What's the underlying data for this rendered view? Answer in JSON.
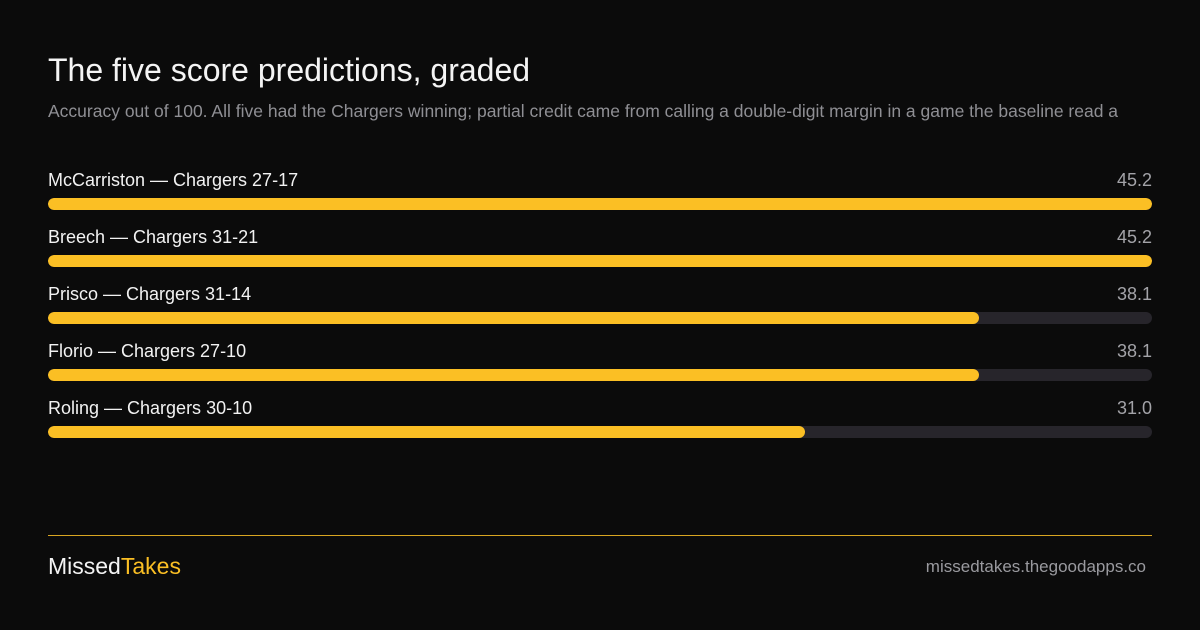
{
  "chart_data": {
    "type": "bar",
    "orientation": "horizontal",
    "title": "The five score predictions, graded",
    "subtitle": "Accuracy out of 100. All five had the Chargers winning; partial credit came from calling a double-digit margin in a game the baseline read a",
    "categories": [
      "McCarriston — Chargers 27-17",
      "Breech — Chargers 31-21",
      "Prisco — Chargers 31-14",
      "Florio — Chargers 27-10",
      "Roling — Chargers 30-10"
    ],
    "values": [
      45.2,
      45.2,
      38.1,
      38.1,
      31.0
    ],
    "value_labels": [
      "45.2",
      "45.2",
      "38.1",
      "38.1",
      "31.0"
    ],
    "color": "#fbbf24",
    "track_color": "#27252b"
  },
  "footer": {
    "brand": [
      "Missed",
      "Takes"
    ],
    "url": "missedtakes.thegoodapps.co"
  }
}
